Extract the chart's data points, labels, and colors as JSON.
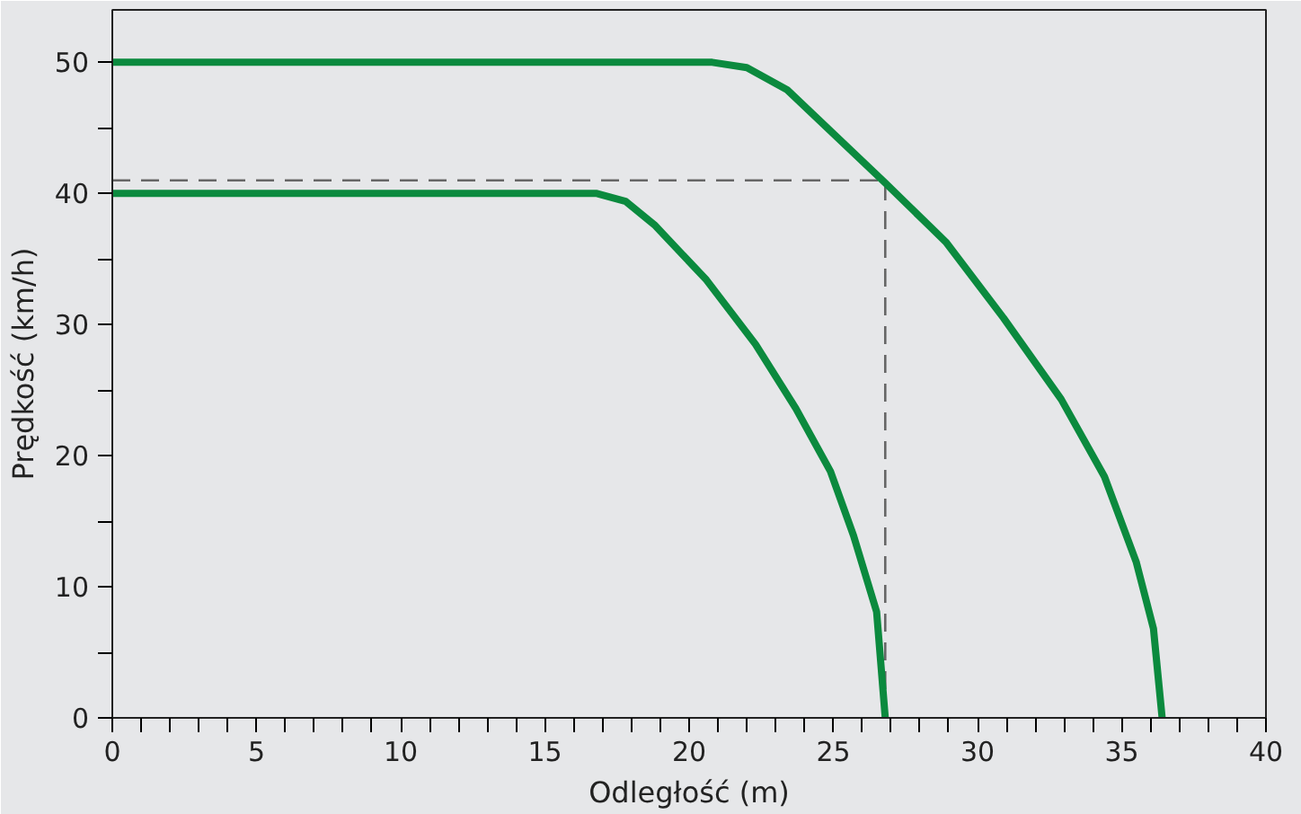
{
  "chart_data": {
    "type": "line",
    "xlabel": "Odległość (m)",
    "ylabel": "Prędkość (km/h)",
    "xlim": [
      0,
      40
    ],
    "ylim": [
      0,
      54
    ],
    "xticks": [
      0,
      {
        "value": 1,
        "label": null
      },
      {
        "value": 2,
        "label": null
      },
      {
        "value": 3,
        "label": null
      },
      {
        "value": 4,
        "label": null
      },
      5,
      {
        "value": 6,
        "label": null
      },
      {
        "value": 7,
        "label": null
      },
      {
        "value": 8,
        "label": null
      },
      {
        "value": 9,
        "label": null
      },
      10,
      {
        "value": 11,
        "label": null
      },
      {
        "value": 12,
        "label": null
      },
      {
        "value": 13,
        "label": null
      },
      {
        "value": 14,
        "label": null
      },
      15,
      {
        "value": 16,
        "label": null
      },
      {
        "value": 17,
        "label": null
      },
      {
        "value": 18,
        "label": null
      },
      {
        "value": 19,
        "label": null
      },
      20,
      {
        "value": 21,
        "label": null
      },
      {
        "value": 22,
        "label": null
      },
      {
        "value": 23,
        "label": null
      },
      {
        "value": 24,
        "label": null
      },
      25,
      {
        "value": 26,
        "label": null
      },
      {
        "value": 27,
        "label": null
      },
      {
        "value": 28,
        "label": null
      },
      {
        "value": 29,
        "label": null
      },
      30,
      {
        "value": 31,
        "label": null
      },
      {
        "value": 32,
        "label": null
      },
      {
        "value": 33,
        "label": null
      },
      {
        "value": 34,
        "label": null
      },
      35,
      {
        "value": 36,
        "label": null
      },
      {
        "value": 37,
        "label": null
      },
      {
        "value": 38,
        "label": null
      },
      {
        "value": 39,
        "label": null
      },
      40
    ],
    "yticks": [
      0,
      {
        "value": 5,
        "label": null
      },
      10,
      {
        "value": 15,
        "label": null
      },
      20,
      {
        "value": 25,
        "label": null
      },
      30,
      {
        "value": 35,
        "label": null
      },
      40,
      {
        "value": 45,
        "label": null
      },
      50
    ],
    "grid": false,
    "marker": "none",
    "line_style": "solid",
    "series": [
      {
        "color": "#0b8a3e",
        "x": [
          0,
          20.8,
          22.0,
          23.4,
          26.8,
          28.9,
          30.9,
          32.9,
          34.4,
          35.5,
          36.1,
          36.4
        ],
        "values": [
          50,
          50,
          49.6,
          47.9,
          40.8,
          36.3,
          30.5,
          24.3,
          18.4,
          11.9,
          6.8,
          0
        ]
      },
      {
        "color": "#0b8a3e",
        "x": [
          0,
          16.8,
          17.8,
          18.8,
          20.6,
          22.3,
          23.7,
          24.9,
          25.7,
          26.5,
          26.8
        ],
        "values": [
          40,
          40,
          39.4,
          37.6,
          33.4,
          28.5,
          23.6,
          18.8,
          13.9,
          8.1,
          0
        ]
      }
    ],
    "ref_lines": [
      {
        "axis": "y",
        "value": 41,
        "color": "#666666",
        "line_style": "dashed"
      },
      {
        "axis": "x",
        "value": 26.8,
        "color": "#666666",
        "line_style": "dashed"
      }
    ]
  }
}
